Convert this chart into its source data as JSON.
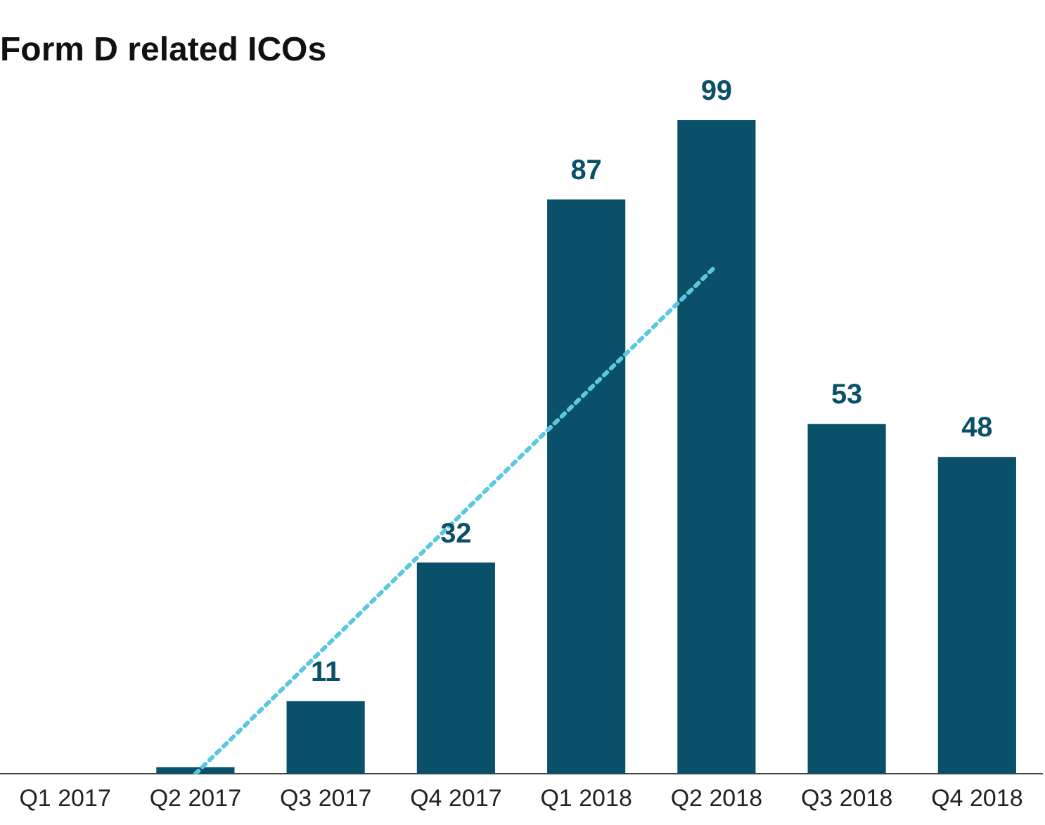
{
  "chart_data": {
    "type": "bar",
    "title": "Form D related ICOs",
    "categories": [
      "Q1 2017",
      "Q2 2017",
      "Q3 2017",
      "Q4 2017",
      "Q1 2018",
      "Q2 2018",
      "Q3 2018",
      "Q4 2018"
    ],
    "series": [
      {
        "color": "#0b5069",
        "values": [
          0,
          1,
          11,
          32,
          87,
          99,
          53,
          48
        ],
        "value_labels": [
          null,
          null,
          "11",
          "32",
          "87",
          "99",
          "53",
          "48"
        ]
      },
      {
        "type": "line",
        "color": "#5bc8e0",
        "line_style": "dotted",
        "marker": "none",
        "x": [
          "Q2 2017",
          "Q2 2018"
        ],
        "values": [
          0,
          77
        ]
      }
    ],
    "legend": false,
    "grid": false
  }
}
